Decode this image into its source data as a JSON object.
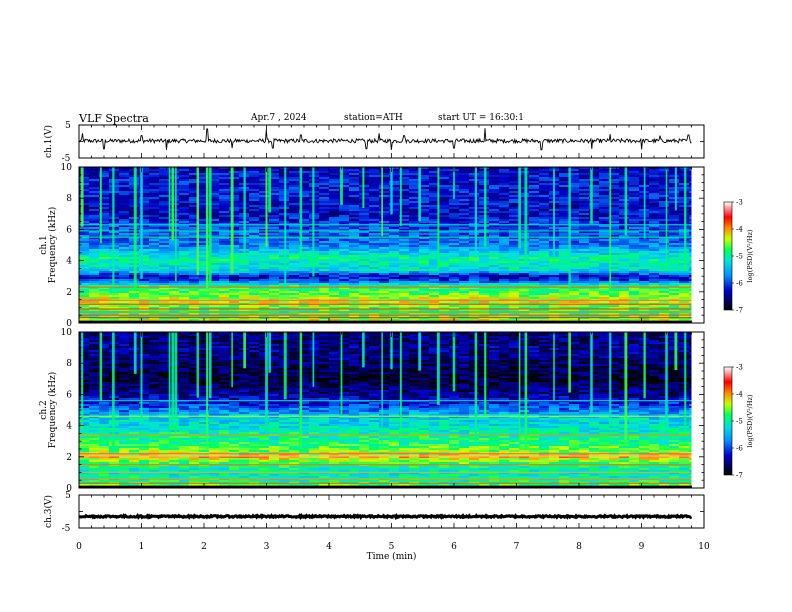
{
  "header": {
    "title": "VLF Spectra",
    "date": "Apr.7 , 2024",
    "station": "station=ATH",
    "start": "start UT = 16:30:1"
  },
  "chart_data": [
    {
      "type": "line",
      "panel": "ch1-waveform",
      "ylabel": "ch.1(V)",
      "y_ticks": [
        "5",
        "-5"
      ],
      "ylim": [
        -5,
        5
      ],
      "xlim": [
        0,
        10
      ],
      "data_extent_min": 9.8,
      "trace_baseline": 0.2,
      "trace_noise_amplitude": 0.6,
      "spikes": [
        {
          "x": 0.06,
          "y": 2.5
        },
        {
          "x": 0.4,
          "y": -2.2
        },
        {
          "x": 1.0,
          "y": 1.8
        },
        {
          "x": 1.4,
          "y": -2.5
        },
        {
          "x": 2.05,
          "y": 3.8
        },
        {
          "x": 2.45,
          "y": -2.0
        },
        {
          "x": 3.0,
          "y": 3.5
        },
        {
          "x": 3.1,
          "y": -2.0
        },
        {
          "x": 3.55,
          "y": 2.0
        },
        {
          "x": 4.6,
          "y": -2.2
        },
        {
          "x": 4.8,
          "y": 2.5
        },
        {
          "x": 5.0,
          "y": -2.5
        },
        {
          "x": 5.2,
          "y": 1.8
        },
        {
          "x": 6.0,
          "y": -2.0
        },
        {
          "x": 6.5,
          "y": 4.0
        },
        {
          "x": 7.4,
          "y": -2.5
        },
        {
          "x": 8.2,
          "y": -2.2
        },
        {
          "x": 8.5,
          "y": 2.2
        },
        {
          "x": 9.0,
          "y": -2.4
        },
        {
          "x": 9.3,
          "y": 1.8
        },
        {
          "x": 9.75,
          "y": 2.0
        }
      ]
    },
    {
      "type": "heatmap",
      "panel": "ch1-spectrogram",
      "ylabel": "ch.1 Frequency (kHz)",
      "ylim": [
        0,
        10
      ],
      "y_ticks": [
        "0",
        "2",
        "4",
        "6",
        "8",
        "10"
      ],
      "xlim": [
        0,
        10
      ],
      "data_extent_min": 9.8,
      "colorbar": {
        "label": "log(PSD)(V²/Hz)",
        "range": [
          -7,
          -3
        ],
        "ticks": [
          "-3",
          "-4",
          "-5",
          "-6",
          "-7"
        ]
      },
      "profile_khz_logpsd": [
        [
          0.0,
          -4.0
        ],
        [
          0.3,
          -4.6
        ],
        [
          0.7,
          -4.9
        ],
        [
          1.0,
          -4.6
        ],
        [
          1.4,
          -4.3
        ],
        [
          2.0,
          -4.7
        ],
        [
          2.4,
          -4.9
        ],
        [
          2.7,
          -6.0
        ],
        [
          3.0,
          -6.3
        ],
        [
          3.4,
          -5.2
        ],
        [
          4.2,
          -5.0
        ],
        [
          5.0,
          -5.8
        ],
        [
          6.0,
          -6.0
        ],
        [
          7.0,
          -6.3
        ],
        [
          8.0,
          -6.2
        ],
        [
          9.0,
          -6.2
        ],
        [
          10.0,
          -6.3
        ]
      ],
      "lines_khz": [
        0.35,
        0.5,
        0.7,
        0.9,
        1.2,
        1.45,
        2.3,
        5.5,
        5.9,
        6.3
      ],
      "sferic_minutes": [
        0.05,
        0.35,
        0.55,
        0.9,
        1.0,
        1.45,
        1.5,
        1.55,
        1.9,
        2.05,
        2.1,
        2.45,
        2.65,
        3.0,
        3.05,
        3.3,
        3.55,
        3.75,
        4.2,
        4.55,
        4.85,
        5.0,
        5.15,
        5.45,
        5.75,
        6.0,
        6.35,
        6.5,
        7.05,
        7.15,
        7.6,
        7.85,
        8.2,
        8.5,
        8.75,
        9.05,
        9.4,
        9.55,
        9.7
      ]
    },
    {
      "type": "heatmap",
      "panel": "ch2-spectrogram",
      "ylabel": "ch.2 Frequency (kHz)",
      "ylim": [
        0,
        10
      ],
      "y_ticks": [
        "0",
        "2",
        "4",
        "6",
        "8",
        "10"
      ],
      "xlim": [
        0,
        10
      ],
      "data_extent_min": 9.8,
      "colorbar": {
        "label": "log(PSD)(V²/Hz)",
        "range": [
          -7,
          -3
        ],
        "ticks": [
          "-3",
          "-4",
          "-5",
          "-6",
          "-7"
        ]
      },
      "profile_khz_logpsd": [
        [
          0.0,
          -4.5
        ],
        [
          0.5,
          -5.0
        ],
        [
          1.0,
          -5.1
        ],
        [
          1.5,
          -4.9
        ],
        [
          2.0,
          -4.1
        ],
        [
          2.3,
          -4.5
        ],
        [
          3.0,
          -4.9
        ],
        [
          3.5,
          -5.0
        ],
        [
          4.0,
          -5.2
        ],
        [
          4.5,
          -5.3
        ],
        [
          5.0,
          -5.8
        ],
        [
          5.5,
          -6.2
        ],
        [
          6.0,
          -6.5
        ],
        [
          7.0,
          -6.8
        ],
        [
          8.0,
          -6.6
        ],
        [
          9.0,
          -6.5
        ],
        [
          10.0,
          -6.6
        ]
      ],
      "lines_khz": [
        0.3,
        0.6,
        1.0,
        1.5,
        2.05,
        2.2,
        3.4,
        4.6,
        5.6
      ],
      "sferic_minutes": [
        0.05,
        0.35,
        0.55,
        0.9,
        1.0,
        1.45,
        1.5,
        1.55,
        1.9,
        2.05,
        2.1,
        2.45,
        2.65,
        3.0,
        3.05,
        3.3,
        3.55,
        3.75,
        4.2,
        4.55,
        4.85,
        5.0,
        5.15,
        5.45,
        5.75,
        6.0,
        6.35,
        6.5,
        7.05,
        7.15,
        7.6,
        7.85,
        8.2,
        8.5,
        8.75,
        9.05,
        9.4,
        9.55,
        9.7
      ]
    },
    {
      "type": "line",
      "panel": "ch3-waveform",
      "ylabel": "ch.3(V)",
      "y_ticks": [
        "5",
        "-5"
      ],
      "ylim": [
        -5,
        5
      ],
      "xlim": [
        0,
        10
      ],
      "data_extent_min": 9.8,
      "trace_baseline": -1.5,
      "trace_noise_amplitude": 0.25,
      "xlabel": "Time (min)",
      "x_ticks": [
        "0",
        "1",
        "2",
        "3",
        "4",
        "5",
        "6",
        "7",
        "8",
        "9",
        "10"
      ]
    }
  ]
}
